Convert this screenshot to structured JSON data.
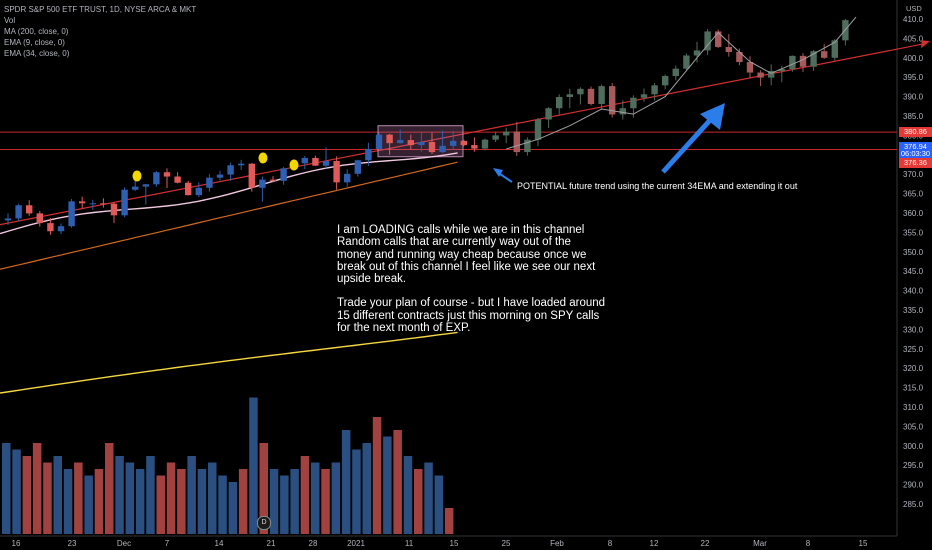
{
  "legend": {
    "symbol": "SPDR S&P 500 ETF TRUST, 1D, NYSE ARCA & MKT",
    "vol": "Vol",
    "ma": "MA (200, close, 0)",
    "ema9": "EMA (9, close, 0)",
    "ema34": "EMA (34, close, 0)"
  },
  "currency": "USD",
  "note": {
    "p1": "I am LOADING calls while we are in this channel Random calls that are currently way out of the money and running way cheap because once we break out of this channel I feel like we see our next upside break.",
    "p2": "Trade your plan of course - but I have loaded around 15 different contracts just this morning on SPY calls for the next month of EXP."
  },
  "annotation": "POTENTIAL future trend using the current 34EMA and extending it out",
  "price_tags": [
    {
      "label": "380.86",
      "value": 380.86,
      "color": "#e53935"
    },
    {
      "label": "376.94",
      "value": 376.94,
      "color": "#2962ff"
    },
    {
      "label": "06:03:30",
      "value": 375.2,
      "color": "#2962ff"
    },
    {
      "label": "376.36",
      "value": 373.0,
      "color": "#e53935"
    }
  ],
  "volume_badge": "D",
  "colors": {
    "up": "#2a5a9a",
    "down": "#c0504d",
    "ema9": "#f0c8e0",
    "ema34": "#d2691e",
    "ma200": "#f5d742",
    "trend": "#d32f2f",
    "channel": "#c62828",
    "projection": "#a0a0a0"
  },
  "chart_data": {
    "type": "candlestick",
    "y_ticks": [
      410,
      405,
      400,
      395,
      390,
      385,
      380,
      375,
      370,
      365,
      360,
      355,
      350,
      345,
      340,
      335,
      330,
      325,
      320,
      315,
      310,
      305,
      300,
      295,
      290,
      285
    ],
    "x_ticks": [
      "16",
      "23",
      "Dec",
      "7",
      "14",
      "21",
      "28",
      "2021",
      "11",
      "15",
      "25",
      "Feb",
      "8",
      "12",
      "22",
      "Mar",
      "8",
      "15"
    ],
    "channel": [
      380.86,
      376.36
    ],
    "candles": [
      [
        358.1,
        359.9,
        356.9,
        358.6
      ],
      [
        358.6,
        362.4,
        357.8,
        362.0
      ],
      [
        362.0,
        363.3,
        359.3,
        359.9
      ],
      [
        359.9,
        360.5,
        356.5,
        357.4
      ],
      [
        357.4,
        358.7,
        354.4,
        355.3
      ],
      [
        355.3,
        357.3,
        354.6,
        356.6
      ],
      [
        356.6,
        363.6,
        356.2,
        363.0
      ],
      [
        363.0,
        364.2,
        361.2,
        362.5
      ],
      [
        362.5,
        363.4,
        360.8,
        362.5
      ],
      [
        362.5,
        363.8,
        361.4,
        362.4
      ],
      [
        362.4,
        362.7,
        357.4,
        359.4
      ],
      [
        359.4,
        366.6,
        358.9,
        366.0
      ],
      [
        366.0,
        368.8,
        365.7,
        366.8
      ],
      [
        366.8,
        367.5,
        362.2,
        367.4
      ],
      [
        367.4,
        370.8,
        366.8,
        370.5
      ],
      [
        370.5,
        371.5,
        366.4,
        369.4
      ],
      [
        369.4,
        370.5,
        367.6,
        367.8
      ],
      [
        367.8,
        368.3,
        364.5,
        364.6
      ],
      [
        364.6,
        367.9,
        364.1,
        366.5
      ],
      [
        366.5,
        370.0,
        365.5,
        369.1
      ],
      [
        369.1,
        370.9,
        368.4,
        369.9
      ],
      [
        369.9,
        373.0,
        368.3,
        372.3
      ],
      [
        372.3,
        373.7,
        371.1,
        372.7
      ],
      [
        372.7,
        372.9,
        365.5,
        366.5
      ],
      [
        366.5,
        369.4,
        362.9,
        368.6
      ],
      [
        368.6,
        369.5,
        367.9,
        368.3
      ],
      [
        368.3,
        371.9,
        367.3,
        371.5
      ],
      [
        371.5,
        373.1,
        371.0,
        372.8
      ],
      [
        372.8,
        374.7,
        371.3,
        374.2
      ],
      [
        374.2,
        374.8,
        372.1,
        372.2
      ],
      [
        372.2,
        376.9,
        371.5,
        373.4
      ],
      [
        373.4,
        374.6,
        366.0,
        367.9
      ],
      [
        367.9,
        371.3,
        366.8,
        370.1
      ],
      [
        370.1,
        373.6,
        369.4,
        373.6
      ],
      [
        373.6,
        378.1,
        372.1,
        376.5
      ],
      [
        376.5,
        380.8,
        376.2,
        380.2
      ],
      [
        380.2,
        380.4,
        375.0,
        378.0
      ],
      [
        378.0,
        381.5,
        377.9,
        378.8
      ],
      [
        378.8,
        380.2,
        376.4,
        377.5
      ],
      [
        377.5,
        380.7,
        375.8,
        378.3
      ],
      [
        378.3,
        380.7,
        375.2,
        375.7
      ],
      [
        375.7,
        381.3,
        375.5,
        377.3
      ],
      [
        377.3,
        381.2,
        376.3,
        378.6
      ],
      [
        378.6,
        378.8,
        377.2,
        377.5
      ],
      [
        377.5,
        379.5,
        375.8,
        376.6
      ],
      [
        376.6,
        379.2,
        376.1,
        378.9
      ],
      [
        378.9,
        381.0,
        378.3,
        380.0
      ],
      [
        380.0,
        382.0,
        378.0,
        381.0
      ],
      [
        381.0,
        383.5,
        374.7,
        375.7
      ],
      [
        375.7,
        379.5,
        374.8,
        378.9
      ],
      [
        378.9,
        384.5,
        377.2,
        384.1
      ],
      [
        384.1,
        387.3,
        381.9,
        387.0
      ],
      [
        387.0,
        390.6,
        385.4,
        389.9
      ],
      [
        389.9,
        392.0,
        387.0,
        390.6
      ],
      [
        390.6,
        392.4,
        388.0,
        392.0
      ],
      [
        392.0,
        392.6,
        387.7,
        388.1
      ],
      [
        388.1,
        393.1,
        386.9,
        392.7
      ],
      [
        392.7,
        393.5,
        384.6,
        385.4
      ],
      [
        385.4,
        389.1,
        384.1,
        387.0
      ],
      [
        387.0,
        390.3,
        384.6,
        389.7
      ],
      [
        389.7,
        392.1,
        388.7,
        390.6
      ],
      [
        390.6,
        393.5,
        389.0,
        392.9
      ],
      [
        392.9,
        395.7,
        391.9,
        395.3
      ],
      [
        395.3,
        398.0,
        394.2,
        397.2
      ],
      [
        397.2,
        401.1,
        396.8,
        400.6
      ],
      [
        400.6,
        404.1,
        398.8,
        401.9
      ],
      [
        401.9,
        407.4,
        400.7,
        406.8
      ],
      [
        406.8,
        407.3,
        402.5,
        402.8
      ],
      [
        402.8,
        406.1,
        400.3,
        401.5
      ],
      [
        401.5,
        402.4,
        398.1,
        398.9
      ],
      [
        398.9,
        400.4,
        394.7,
        396.2
      ],
      [
        396.2,
        396.8,
        392.7,
        394.9
      ],
      [
        394.9,
        398.3,
        392.9,
        396.6
      ],
      [
        396.6,
        397.9,
        393.7,
        397.1
      ],
      [
        397.1,
        400.6,
        396.4,
        400.5
      ],
      [
        400.5,
        401.2,
        396.3,
        397.7
      ],
      [
        397.7,
        402.0,
        396.6,
        401.7
      ],
      [
        401.7,
        403.5,
        399.7,
        400.0
      ],
      [
        400.0,
        404.8,
        399.3,
        404.5
      ],
      [
        404.5,
        410.0,
        403.2,
        409.7
      ]
    ],
    "projection": [
      [
        47,
        376.5
      ],
      [
        50,
        379.0
      ],
      [
        53,
        382.5
      ],
      [
        56,
        386.8
      ],
      [
        59,
        385.5
      ],
      [
        62,
        390.0
      ],
      [
        65,
        400.0
      ],
      [
        67,
        406.5
      ],
      [
        70,
        399.0
      ],
      [
        72,
        396.0
      ],
      [
        75,
        399.5
      ],
      [
        78,
        404.0
      ],
      [
        80,
        410.5
      ]
    ],
    "trend": [
      [
        0,
        357
      ],
      [
        30,
        364
      ],
      [
        45,
        373.5
      ],
      [
        60,
        384
      ],
      [
        80,
        403
      ]
    ]
  }
}
